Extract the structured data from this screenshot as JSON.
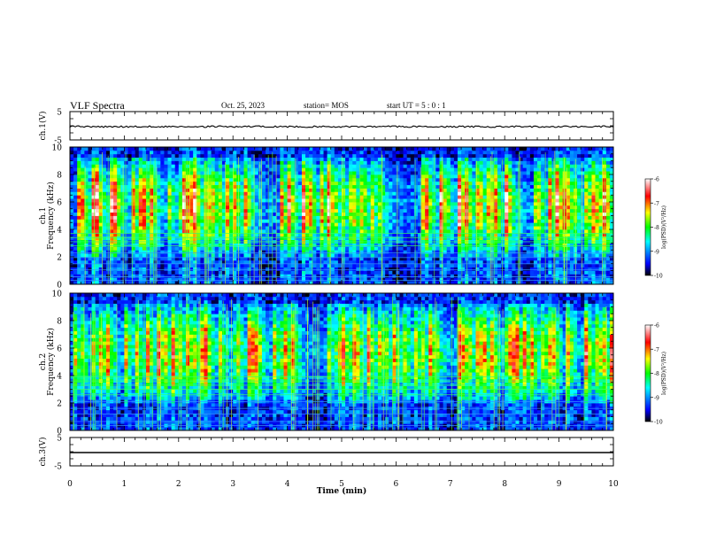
{
  "header": {
    "title": "VLF Spectra",
    "date": "Oct. 25, 2023",
    "station": "station= MOS",
    "start_ut": "start  UT =   5 : 0  : 1"
  },
  "chart_data": {
    "type": "heatmap",
    "xlabel": "Time  (min)",
    "xlim": [
      0,
      10
    ],
    "xticks": [
      "0",
      "1",
      "2",
      "3",
      "4",
      "5",
      "6",
      "7",
      "8",
      "9",
      "10"
    ],
    "panels": [
      {
        "id": "ch1-waveform",
        "ylabel": "ch.1(V)",
        "type": "line",
        "ylim": [
          -5,
          5
        ],
        "yticks": [
          "5",
          "-5"
        ],
        "level": 0
      },
      {
        "id": "ch1-spectrogram",
        "ylabel": "ch.1",
        "ylabel2": "Frequency (kHz)",
        "type": "heatmap",
        "ylim": [
          0,
          10
        ],
        "yticks": [
          "0",
          "2",
          "4",
          "6",
          "8",
          "10"
        ],
        "z_range": [
          -10,
          -6
        ]
      },
      {
        "id": "ch2-spectrogram",
        "ylabel": "ch.2",
        "ylabel2": "Frequency (kHz)",
        "type": "heatmap",
        "ylim": [
          0,
          10
        ],
        "yticks": [
          "0",
          "2",
          "4",
          "6",
          "8",
          "10"
        ],
        "z_range": [
          -10,
          -6
        ]
      },
      {
        "id": "ch3-waveform",
        "ylabel": "ch.3(V)",
        "type": "line",
        "ylim": [
          -5,
          5
        ],
        "yticks": [
          "5",
          "-5"
        ],
        "level": 0
      }
    ],
    "colorbar": {
      "label": "log(PSD)(V²/Hz)",
      "ticks": [
        "-6",
        "-7",
        "-8",
        "-9",
        "-10"
      ],
      "range": [
        -10,
        -6
      ],
      "colors": [
        "#000000",
        "#0000ff",
        "#00ffff",
        "#00ff00",
        "#ffff00",
        "#ff0000",
        "#ffffff"
      ]
    }
  }
}
